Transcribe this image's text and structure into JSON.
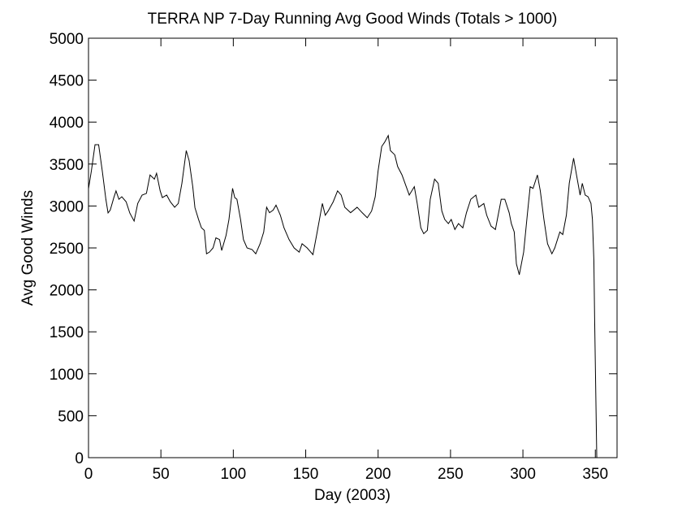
{
  "chart_data": {
    "type": "line",
    "title": "TERRA NP 7-Day Running Avg Good Winds (Totals > 1000)",
    "x_label": "Day (2003)",
    "y_label": "Avg Good Winds",
    "xlim": [
      0,
      365
    ],
    "ylim": [
      0,
      5000
    ],
    "xticks": [
      0,
      50,
      100,
      150,
      200,
      250,
      300,
      350
    ],
    "yticks": [
      0,
      500,
      1000,
      1500,
      2000,
      2500,
      3000,
      3500,
      4000,
      4500,
      5000
    ],
    "grid": false,
    "series": [
      {
        "name": "Avg Good Winds",
        "color": "#000000",
        "x": [
          0,
          2,
          4.5,
          7,
          9.5,
          12,
          13.5,
          15,
          17.5,
          19,
          21,
          23,
          26,
          28.5,
          31.5,
          34,
          37,
          40,
          42.5,
          45.5,
          47,
          49.5,
          51,
          54,
          56.5,
          59.5,
          62,
          64.5,
          67.5,
          69.5,
          72,
          73.5,
          76,
          78,
          80,
          81.5,
          83.5,
          86,
          88,
          90.5,
          92,
          95,
          97,
          99.5,
          101,
          102.5,
          105,
          107,
          109.5,
          113,
          115.5,
          118.5,
          121,
          123,
          125,
          127.5,
          129.5,
          132.5,
          135,
          138.5,
          142,
          145.5,
          147.5,
          151,
          155,
          157.5,
          159.5,
          161.5,
          163.5,
          165.5,
          169,
          172,
          174.5,
          177,
          181,
          185.5,
          189,
          192.5,
          195.5,
          198,
          200,
          202.5,
          204.5,
          207,
          208.5,
          211.5,
          213.5,
          216.5,
          219,
          221.5,
          225,
          227,
          229.5,
          231.5,
          234,
          236,
          239,
          241.5,
          244,
          246,
          248.5,
          250.5,
          253,
          255.5,
          258.5,
          261,
          264,
          267.5,
          269.5,
          273,
          275,
          278,
          281,
          285,
          287.5,
          290.5,
          292,
          294,
          295.5,
          297.5,
          300.5,
          303,
          305,
          307,
          310,
          312,
          314.5,
          317,
          320,
          322,
          325.5,
          327.5,
          330,
          332,
          335,
          337,
          339.5,
          341,
          343,
          345,
          347,
          348,
          349,
          349.5,
          351
        ],
        "values": [
          3207,
          3420,
          3730,
          3730,
          3420,
          3080,
          2917,
          2950,
          3100,
          3180,
          3080,
          3110,
          3050,
          2917,
          2820,
          3030,
          3130,
          3150,
          3370,
          3320,
          3390,
          3180,
          3100,
          3130,
          3050,
          2985,
          3030,
          3270,
          3660,
          3540,
          3230,
          2980,
          2840,
          2740,
          2710,
          2430,
          2450,
          2500,
          2620,
          2600,
          2470,
          2650,
          2840,
          3210,
          3100,
          3080,
          2840,
          2600,
          2500,
          2480,
          2430,
          2550,
          2690,
          2985,
          2920,
          2950,
          3010,
          2890,
          2740,
          2600,
          2500,
          2450,
          2550,
          2500,
          2420,
          2650,
          2840,
          3030,
          2890,
          2940,
          3050,
          3180,
          3130,
          2985,
          2920,
          2985,
          2920,
          2860,
          2940,
          3110,
          3420,
          3710,
          3760,
          3840,
          3660,
          3610,
          3470,
          3370,
          3250,
          3130,
          3230,
          3030,
          2740,
          2670,
          2710,
          3080,
          3320,
          3270,
          2940,
          2840,
          2790,
          2840,
          2720,
          2790,
          2740,
          2920,
          3080,
          3130,
          2985,
          3030,
          2890,
          2760,
          2720,
          3080,
          3080,
          2920,
          2790,
          2690,
          2310,
          2180,
          2450,
          2890,
          3230,
          3210,
          3370,
          3180,
          2840,
          2550,
          2430,
          2500,
          2690,
          2660,
          2890,
          3270,
          3570,
          3370,
          3130,
          3270,
          3130,
          3110,
          3030,
          2840,
          2350,
          1680,
          0
        ]
      }
    ]
  }
}
